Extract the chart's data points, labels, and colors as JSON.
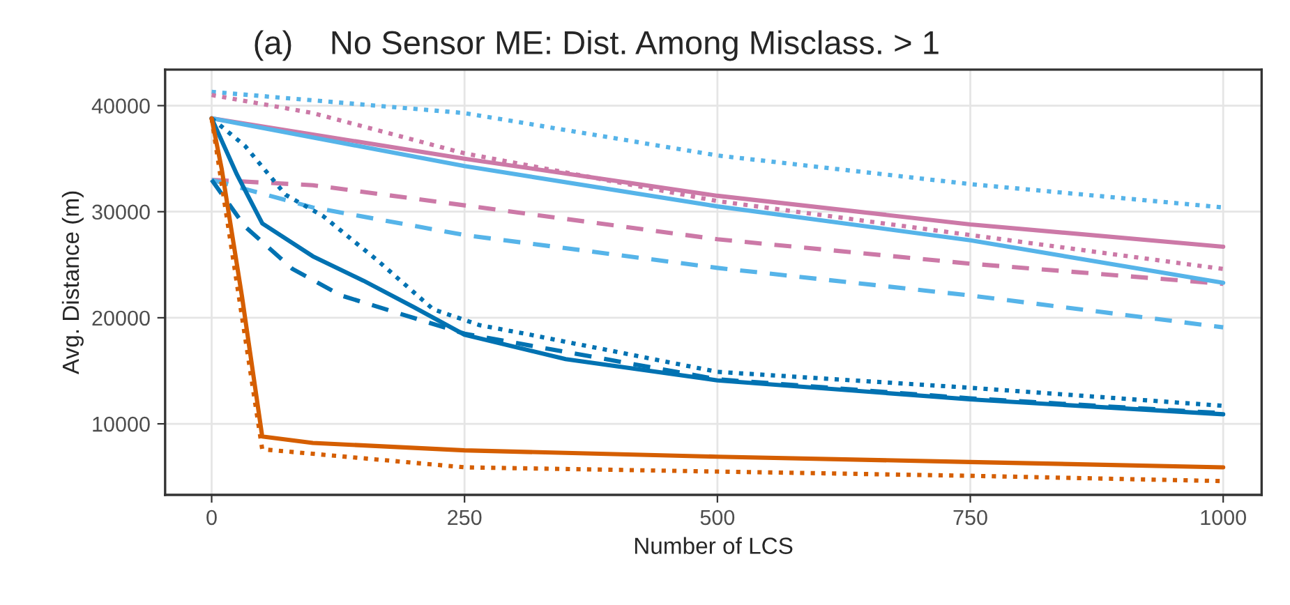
{
  "chart_data": {
    "type": "line",
    "title": "(a)    No Sensor ME: Dist. Among Misclass. > 1",
    "xlabel": "Number of LCS",
    "ylabel": "Avg. Distance (m)",
    "xlim": [
      -46,
      1038
    ],
    "ylim": [
      3300,
      43400
    ],
    "xticks": [
      0,
      250,
      500,
      750,
      1000
    ],
    "yticks": [
      10000,
      20000,
      30000,
      40000
    ],
    "grid": true,
    "legend": false,
    "marker": "none",
    "series": [
      {
        "color": "#56b4e9",
        "line_style": "dotted",
        "x": [
          0,
          250,
          500,
          750,
          1000
        ],
        "values": [
          41300,
          39300,
          35300,
          32600,
          30400
        ]
      },
      {
        "color": "#cc79a7",
        "line_style": "dotted",
        "x": [
          0,
          100,
          250,
          500,
          750,
          1000
        ],
        "values": [
          41000,
          39300,
          35500,
          31000,
          27800,
          24600
        ]
      },
      {
        "color": "#cc79a7",
        "line_style": "dashed",
        "x": [
          0,
          100,
          250,
          500,
          750,
          1000
        ],
        "values": [
          33000,
          32500,
          30600,
          27400,
          25100,
          23200
        ]
      },
      {
        "color": "#56b4e9",
        "line_style": "dashed",
        "x": [
          0,
          100,
          250,
          500,
          750,
          1000
        ],
        "values": [
          33000,
          30400,
          27800,
          24700,
          22100,
          19100
        ]
      },
      {
        "color": "#cc79a7",
        "line_style": "solid",
        "x": [
          0,
          250,
          500,
          750,
          1000
        ],
        "values": [
          38800,
          35000,
          31500,
          28800,
          26700
        ]
      },
      {
        "color": "#56b4e9",
        "line_style": "solid",
        "x": [
          0,
          250,
          500,
          750,
          1000
        ],
        "values": [
          38800,
          34300,
          30500,
          27300,
          23300
        ]
      },
      {
        "color": "#0072b2",
        "line_style": "dotted",
        "x": [
          0,
          33,
          73,
          110,
          164,
          219,
          265,
          315,
          500,
          750,
          1000
        ],
        "values": [
          38800,
          36200,
          31600,
          29600,
          25400,
          20800,
          19300,
          18400,
          14900,
          13400,
          11700
        ]
      },
      {
        "color": "#0072b2",
        "line_style": "dashed",
        "x": [
          0,
          33,
          80,
          128,
          250,
          500,
          750,
          1000
        ],
        "values": [
          33000,
          28600,
          24600,
          22100,
          18500,
          14200,
          12400,
          11000
        ]
      },
      {
        "color": "#0072b2",
        "line_style": "solid",
        "x": [
          0,
          25,
          50,
          100,
          150,
          200,
          250,
          350,
          500,
          750,
          1000
        ],
        "values": [
          38800,
          33500,
          28900,
          25800,
          23500,
          21000,
          18400,
          16100,
          14100,
          12300,
          10900
        ]
      },
      {
        "color": "#d55e00",
        "line_style": "dotted",
        "x": [
          0,
          50,
          250,
          500,
          750,
          1000
        ],
        "values": [
          38800,
          7600,
          5900,
          5500,
          5100,
          4600
        ]
      },
      {
        "color": "#d55e00",
        "line_style": "solid",
        "x": [
          0,
          10,
          30,
          50,
          100,
          250,
          500,
          750,
          1000
        ],
        "values": [
          38800,
          34000,
          22000,
          8800,
          8200,
          7500,
          6900,
          6400,
          5900
        ]
      }
    ]
  }
}
